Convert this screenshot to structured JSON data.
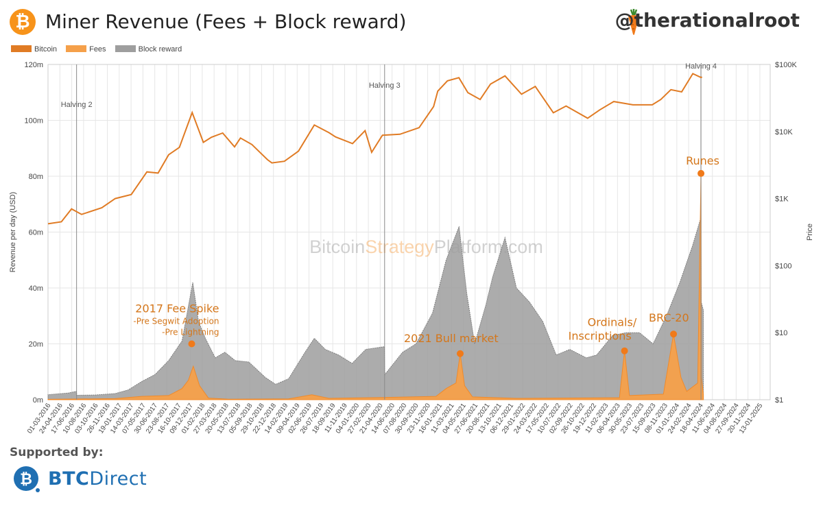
{
  "header": {
    "title": "Miner Revenue (Fees + Block reward)",
    "handle": "@therationalroot",
    "btc_symbol": "₿"
  },
  "watermark": {
    "part1": "Bitcoin",
    "part2": "Strategy",
    "part3": "Platform.com"
  },
  "footer": {
    "supported_label": "Supported by:",
    "sponsor_bold": "BTC",
    "sponsor_light": "Direct"
  },
  "colors": {
    "bitcoin": "#e07b24",
    "fees": "#f5a04a",
    "block_reward": "#9e9e9e",
    "accent": "#f7931a",
    "annotation": "#d4761a",
    "sponsor": "#1f6fb2"
  },
  "chart_data": {
    "type": "area",
    "title": "Miner Revenue (Fees + Block reward)",
    "ylabel": "Revenue per day (USD)",
    "y2label": "Price",
    "legend": {
      "placement": "top-left",
      "entries": [
        "Bitcoin",
        "Fees",
        "Block reward"
      ]
    },
    "ylim": [
      0,
      120000000
    ],
    "y_ticks": [
      {
        "value": 0,
        "label": "0m"
      },
      {
        "value": 20000000,
        "label": "20m"
      },
      {
        "value": 40000000,
        "label": "40m"
      },
      {
        "value": 60000000,
        "label": "60m"
      },
      {
        "value": 80000000,
        "label": "80m"
      },
      {
        "value": 100000000,
        "label": "100m"
      },
      {
        "value": 120000000,
        "label": "120m"
      }
    ],
    "y2_scale": "log",
    "y2lim": [
      1,
      100000
    ],
    "y2_ticks": [
      {
        "value": 1,
        "label": "$1"
      },
      {
        "value": 10,
        "label": "$10"
      },
      {
        "value": 100,
        "label": "$100"
      },
      {
        "value": 1000,
        "label": "$1K"
      },
      {
        "value": 10000,
        "label": "$10K"
      },
      {
        "value": 100000,
        "label": "$100K"
      }
    ],
    "xlim": [
      "2016-03-01",
      "2025-03-01"
    ],
    "x_tick_labels": [
      "01-03-2016",
      "24-04-2016",
      "17-06-2016",
      "10-08-2016",
      "03-10-2016",
      "26-11-2016",
      "19-01-2017",
      "14-03-2017",
      "07-05-2017",
      "30-06-2017",
      "23-08-2017",
      "16-10-2017",
      "09-12-2017",
      "01-02-2018",
      "27-03-2018",
      "20-05-2018",
      "13-07-2018",
      "05-09-2018",
      "29-10-2018",
      "22-12-2018",
      "14-02-2019",
      "09-04-2019",
      "02-06-2019",
      "26-07-2019",
      "18-09-2019",
      "11-11-2019",
      "04-01-2020",
      "27-02-2020",
      "21-04-2020",
      "14-06-2020",
      "07-08-2020",
      "30-09-2020",
      "23-11-2020",
      "16-01-2021",
      "11-03-2021",
      "04-05-2021",
      "27-06-2021",
      "20-08-2021",
      "13-10-2021",
      "06-12-2021",
      "29-01-2022",
      "24-03-2022",
      "17-05-2022",
      "10-07-2022",
      "02-09-2022",
      "26-10-2022",
      "19-12-2022",
      "11-02-2023",
      "06-04-2023",
      "30-05-2023",
      "23-07-2023",
      "15-09-2023",
      "08-11-2023",
      "01-01-2024",
      "24-02-2024",
      "18-04-2024",
      "11-06-2024",
      "04-08-2024",
      "27-09-2024",
      "20-11-2024",
      "13-01-2025"
    ],
    "halvings": [
      {
        "label": "Halving 2",
        "date": "2016-07-09"
      },
      {
        "label": "Halving 3",
        "date": "2020-05-11"
      },
      {
        "label": "Halving 4",
        "date": "2024-04-20"
      }
    ],
    "annotations": [
      {
        "text": "2017 Fee Spike",
        "sub": [
          "-Pre Segwit Adoption",
          "-Pre Lightning"
        ],
        "date": "2017-12-15",
        "value": 20000000
      },
      {
        "text": "2021 Bull market",
        "date": "2021-04-20",
        "value": 16500000
      },
      {
        "text": "Ordinals/",
        "text2": "Inscriptions",
        "date": "2023-05-08",
        "value": 17500000
      },
      {
        "text": "BRC-20",
        "date": "2023-12-17",
        "value": 23500000
      },
      {
        "text": "Runes",
        "date": "2024-04-20",
        "value": 81000000
      }
    ],
    "series": [
      {
        "name": "Block reward",
        "axis": "left",
        "x": [
          "2016-03-01",
          "2016-06-01",
          "2016-07-08",
          "2016-07-10",
          "2016-10-01",
          "2017-01-01",
          "2017-03-01",
          "2017-05-01",
          "2017-07-01",
          "2017-09-01",
          "2017-11-01",
          "2017-12-20",
          "2018-01-15",
          "2018-02-15",
          "2018-04-01",
          "2018-05-15",
          "2018-07-01",
          "2018-09-01",
          "2018-11-15",
          "2019-01-01",
          "2019-03-01",
          "2019-05-15",
          "2019-06-26",
          "2019-08-15",
          "2019-10-15",
          "2019-12-15",
          "2020-02-15",
          "2020-05-10",
          "2020-05-12",
          "2020-08-01",
          "2020-10-01",
          "2020-12-15",
          "2021-02-15",
          "2021-04-15",
          "2021-05-20",
          "2021-06-25",
          "2021-08-15",
          "2021-09-15",
          "2021-11-10",
          "2022-01-01",
          "2022-03-01",
          "2022-05-01",
          "2022-07-01",
          "2022-09-01",
          "2022-11-15",
          "2023-01-01",
          "2023-03-15",
          "2023-05-15",
          "2023-07-15",
          "2023-09-15",
          "2023-11-15",
          "2024-01-15",
          "2024-03-12",
          "2024-04-19",
          "2024-04-21",
          "2024-05-01"
        ],
        "y": [
          1800000,
          2400000,
          3000000,
          1600000,
          1700000,
          2200000,
          3500000,
          6500000,
          9000000,
          14000000,
          21000000,
          42000000,
          28000000,
          22000000,
          15000000,
          17000000,
          14000000,
          13500000,
          8000000,
          5500000,
          7500000,
          17000000,
          22000000,
          18000000,
          16000000,
          13000000,
          18000000,
          19000000,
          9000000,
          17000000,
          20000000,
          31000000,
          50000000,
          62000000,
          38000000,
          20000000,
          34000000,
          44000000,
          58000000,
          40000000,
          35000000,
          28000000,
          16000000,
          18000000,
          15000000,
          16000000,
          23000000,
          24000000,
          24000000,
          20000000,
          30000000,
          42000000,
          55000000,
          65000000,
          35000000,
          32000000
        ]
      },
      {
        "name": "Fees",
        "axis": "left",
        "x": [
          "2016-03-01",
          "2016-12-31",
          "2017-05-01",
          "2017-09-01",
          "2017-11-01",
          "2017-11-30",
          "2017-12-22",
          "2018-01-20",
          "2018-03-01",
          "2018-06-01",
          "2019-03-01",
          "2019-06-15",
          "2019-09-01",
          "2020-05-01",
          "2020-12-31",
          "2021-02-15",
          "2021-04-01",
          "2021-04-20",
          "2021-05-10",
          "2021-06-15",
          "2022-01-01",
          "2023-04-15",
          "2023-05-08",
          "2023-05-30",
          "2023-11-01",
          "2023-12-17",
          "2024-01-20",
          "2024-02-15",
          "2024-04-05",
          "2024-04-20",
          "2024-04-22",
          "2024-05-01"
        ],
        "y": [
          150000,
          400000,
          1200000,
          1500000,
          4000000,
          7000000,
          12000000,
          5000000,
          600000,
          200000,
          300000,
          1800000,
          500000,
          800000,
          1200000,
          4000000,
          6000000,
          16500000,
          5000000,
          1000000,
          500000,
          700000,
          17500000,
          1500000,
          2000000,
          23500000,
          8000000,
          3000000,
          6000000,
          81000000,
          8000000,
          2000000
        ]
      },
      {
        "name": "Bitcoin",
        "axis": "right",
        "x": [
          "2016-03-01",
          "2016-05-01",
          "2016-06-16",
          "2016-08-01",
          "2016-11-01",
          "2017-01-01",
          "2017-03-15",
          "2017-05-25",
          "2017-07-15",
          "2017-09-01",
          "2017-10-20",
          "2017-12-17",
          "2018-02-06",
          "2018-03-15",
          "2018-05-05",
          "2018-06-28",
          "2018-07-25",
          "2018-09-15",
          "2018-11-25",
          "2018-12-15",
          "2019-02-10",
          "2019-04-15",
          "2019-06-26",
          "2019-09-01",
          "2019-10-01",
          "2019-12-17",
          "2020-02-12",
          "2020-03-13",
          "2020-05-01",
          "2020-07-20",
          "2020-10-15",
          "2020-12-20",
          "2021-01-08",
          "2021-02-21",
          "2021-04-14",
          "2021-05-25",
          "2021-07-20",
          "2021-09-05",
          "2021-11-10",
          "2022-01-24",
          "2022-03-28",
          "2022-06-18",
          "2022-08-15",
          "2022-11-21",
          "2023-01-15",
          "2023-03-20",
          "2023-06-15",
          "2023-09-11",
          "2023-10-20",
          "2023-12-05",
          "2024-01-23",
          "2024-03-14",
          "2024-04-20",
          "2024-04-25"
        ],
        "y": [
          420,
          450,
          700,
          580,
          730,
          1000,
          1150,
          2500,
          2400,
          4500,
          5800,
          19200,
          6900,
          8200,
          9500,
          5900,
          8000,
          6400,
          3800,
          3400,
          3600,
          5100,
          12500,
          9600,
          8300,
          6600,
          10300,
          4900,
          8800,
          9100,
          11400,
          23500,
          40000,
          57000,
          63500,
          38000,
          30000,
          51000,
          67500,
          36000,
          47000,
          19000,
          24000,
          15800,
          21000,
          28000,
          25000,
          25000,
          30000,
          42000,
          39000,
          73000,
          64000,
          65000
        ]
      }
    ]
  }
}
